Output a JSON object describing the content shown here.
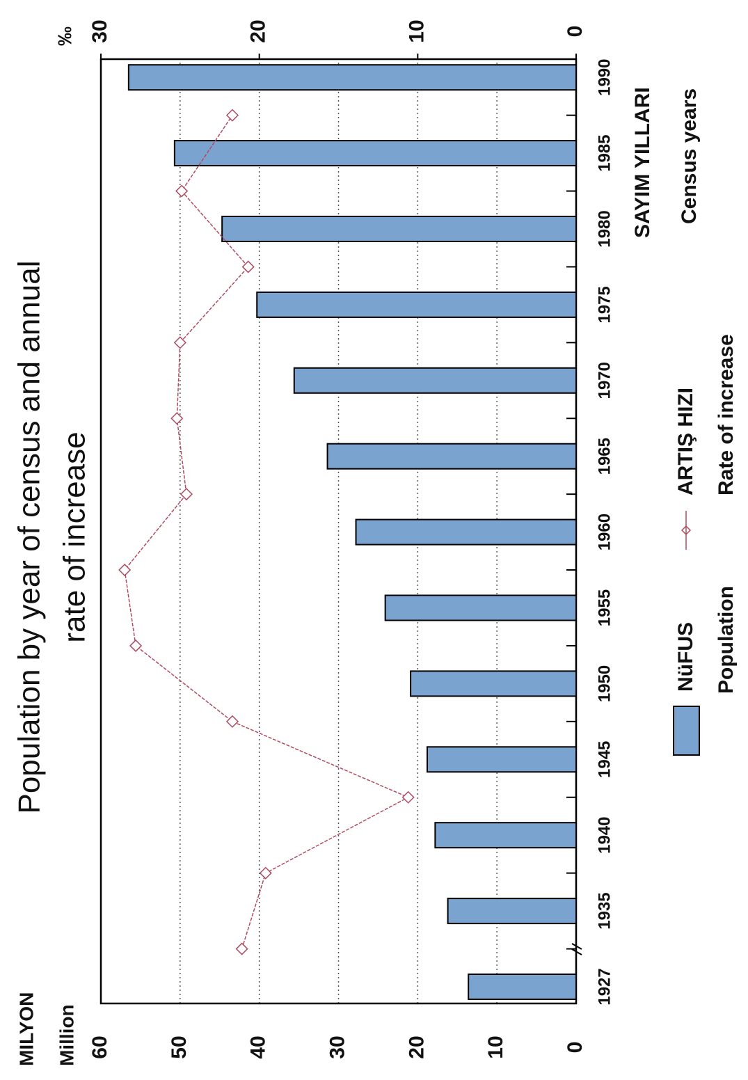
{
  "chart_data": {
    "type": "bar-line",
    "title": [
      "Population by year of census and annual",
      "rate of increase"
    ],
    "ylabel": [
      "MILYON",
      "Million"
    ],
    "y2label": "‰",
    "xlabel": [
      "SAYIM YILLARI",
      "Census years"
    ],
    "categories": [
      "1927",
      "1935",
      "1940",
      "1945",
      "1950",
      "1955",
      "1960",
      "1965",
      "1970",
      "1975",
      "1980",
      "1985",
      "1990"
    ],
    "series": [
      {
        "name": "NüFUS",
        "label": "Population",
        "type": "bar",
        "color": "#7ba3cf",
        "values": [
          13.6,
          16.2,
          17.8,
          18.8,
          20.9,
          24.1,
          27.8,
          31.4,
          35.6,
          40.3,
          44.7,
          50.7,
          56.5
        ]
      },
      {
        "name": "ARTIŞ HIZI",
        "label": "Rate of increase",
        "type": "line",
        "axis": "y2",
        "color": "#b04a5e",
        "values": [
          null,
          21.1,
          19.6,
          10.6,
          21.7,
          27.8,
          28.5,
          24.6,
          25.2,
          25.0,
          20.7,
          24.9,
          21.7
        ]
      }
    ],
    "ylim": [
      0,
      60
    ],
    "yticks": [
      0,
      10,
      20,
      30,
      40,
      50,
      60
    ],
    "y2lim": [
      0,
      30
    ],
    "y2ticks": [
      0,
      10,
      20,
      30
    ],
    "grid": true
  }
}
